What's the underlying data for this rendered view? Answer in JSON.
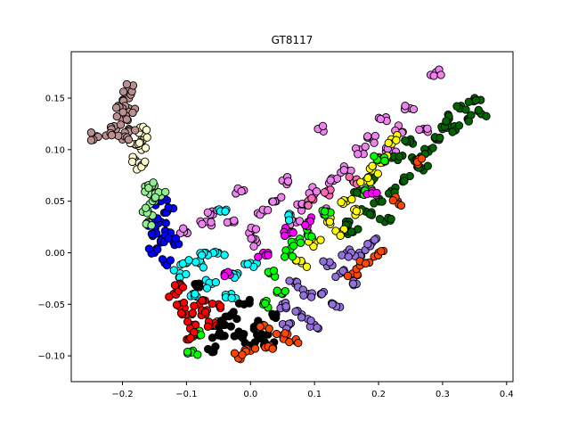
{
  "chart_data": {
    "type": "scatter",
    "title": "GT8117",
    "xlabel": "",
    "ylabel": "",
    "xlim": [
      -0.28,
      0.41
    ],
    "ylim": [
      -0.125,
      0.195
    ],
    "xticks": [
      -0.2,
      -0.1,
      0.0,
      0.1,
      0.2,
      0.3,
      0.4
    ],
    "xtick_labels": [
      "−0.2",
      "−0.1",
      "0.0",
      "0.1",
      "0.2",
      "0.3",
      "0.4"
    ],
    "yticks": [
      -0.1,
      -0.05,
      0.0,
      0.05,
      0.1,
      0.15
    ],
    "ytick_labels": [
      "−0.10",
      "−0.05",
      "0.00",
      "0.05",
      "0.10",
      "0.15"
    ],
    "grid": false,
    "legend": "none",
    "series": [
      {
        "color": "#ee82ee",
        "points": [
          [
            0.02,
            0.04
          ],
          [
            0.05,
            0.07
          ],
          [
            -0.03,
            0.03
          ],
          [
            0.1,
            0.06
          ],
          [
            0.13,
            0.07
          ],
          [
            0.17,
            0.1
          ],
          [
            0.21,
            0.13
          ],
          [
            0.25,
            0.14
          ],
          [
            -0.1,
            0.02
          ],
          [
            -0.07,
            0.03
          ],
          [
            0.0,
            0.02
          ],
          [
            0.07,
            0.03
          ],
          [
            0.15,
            0.08
          ],
          [
            0.19,
            0.11
          ],
          [
            0.23,
            0.12
          ],
          [
            -0.06,
            0.04
          ],
          [
            0.11,
            0.12
          ],
          [
            0.04,
            0.05
          ],
          [
            0.08,
            0.045
          ],
          [
            -0.02,
            0.06
          ],
          [
            0.29,
            0.175
          ],
          [
            0.27,
            0.12
          ],
          [
            0.22,
            0.1
          ],
          [
            0.12,
            0.04
          ],
          [
            0.01,
            0.01
          ]
        ]
      },
      {
        "color": "#ff69b4",
        "points": [
          [
            0.12,
            0.06
          ],
          [
            0.16,
            0.07
          ],
          [
            0.09,
            0.05
          ],
          [
            0.2,
            0.09
          ],
          [
            0.06,
            0.02
          ]
        ]
      },
      {
        "color": "#006400",
        "points": [
          [
            0.18,
            0.04
          ],
          [
            0.22,
            0.06
          ],
          [
            0.26,
            0.09
          ],
          [
            0.3,
            0.12
          ],
          [
            0.33,
            0.14
          ],
          [
            0.35,
            0.15
          ],
          [
            0.28,
            0.1
          ],
          [
            0.24,
            0.07
          ],
          [
            0.2,
            0.05
          ],
          [
            0.16,
            0.02
          ],
          [
            0.31,
            0.13
          ],
          [
            0.27,
            0.08
          ],
          [
            0.23,
            0.09
          ],
          [
            0.19,
            0.07
          ],
          [
            0.25,
            0.11
          ],
          [
            0.21,
            0.03
          ],
          [
            0.29,
            0.11
          ],
          [
            0.32,
            0.12
          ],
          [
            0.34,
            0.13
          ],
          [
            0.15,
            0.03
          ],
          [
            0.36,
            0.135
          ],
          [
            0.17,
            0.06
          ]
        ]
      },
      {
        "color": "#9370db",
        "points": [
          [
            0.05,
            -0.05
          ],
          [
            0.08,
            -0.06
          ],
          [
            0.11,
            -0.04
          ],
          [
            0.14,
            -0.02
          ],
          [
            0.17,
            0.0
          ],
          [
            0.06,
            -0.07
          ],
          [
            0.1,
            -0.07
          ],
          [
            0.13,
            -0.05
          ],
          [
            0.16,
            -0.03
          ],
          [
            0.19,
            0.01
          ],
          [
            0.07,
            -0.03
          ],
          [
            0.12,
            -0.01
          ],
          [
            0.09,
            -0.04
          ],
          [
            0.15,
            0.0
          ]
        ]
      },
      {
        "color": "#ffff00",
        "points": [
          [
            0.12,
            0.03
          ],
          [
            0.15,
            0.05
          ],
          [
            0.18,
            0.07
          ],
          [
            0.21,
            0.09
          ],
          [
            0.1,
            0.01
          ],
          [
            0.14,
            0.02
          ],
          [
            0.17,
            0.04
          ],
          [
            0.22,
            0.11
          ],
          [
            0.19,
            0.08
          ],
          [
            0.08,
            -0.01
          ]
        ]
      },
      {
        "color": "#00ff00",
        "points": [
          [
            0.03,
            -0.02
          ],
          [
            0.06,
            0.0
          ],
          [
            0.09,
            0.02
          ],
          [
            0.12,
            0.04
          ],
          [
            -0.08,
            -0.08
          ],
          [
            -0.05,
            -0.07
          ],
          [
            0.02,
            -0.05
          ],
          [
            0.05,
            -0.04
          ],
          [
            -0.09,
            -0.095
          ],
          [
            0.18,
            0.06
          ],
          [
            0.2,
            0.09
          ],
          [
            0.07,
            0.01
          ]
        ]
      },
      {
        "color": "#00ffff",
        "points": [
          [
            -0.11,
            -0.02
          ],
          [
            -0.08,
            -0.01
          ],
          [
            -0.05,
            0.0
          ],
          [
            -0.02,
            -0.02
          ],
          [
            -0.09,
            -0.04
          ],
          [
            -0.06,
            -0.03
          ],
          [
            -0.03,
            -0.04
          ],
          [
            0.0,
            -0.01
          ],
          [
            -0.07,
            0.0
          ],
          [
            -0.04,
            0.04
          ],
          [
            -0.1,
            -0.01
          ],
          [
            0.06,
            0.035
          ]
        ]
      },
      {
        "color": "#ff0000",
        "points": [
          [
            -0.12,
            -0.04
          ],
          [
            -0.11,
            -0.05
          ],
          [
            -0.1,
            -0.06
          ],
          [
            -0.09,
            -0.07
          ],
          [
            -0.08,
            -0.05
          ],
          [
            -0.07,
            -0.06
          ],
          [
            -0.06,
            -0.07
          ],
          [
            -0.11,
            -0.03
          ],
          [
            -0.09,
            -0.08
          ],
          [
            -0.05,
            -0.05
          ]
        ]
      },
      {
        "color": "#000000",
        "points": [
          [
            -0.04,
            -0.07
          ],
          [
            -0.02,
            -0.08
          ],
          [
            0.0,
            -0.09
          ],
          [
            0.02,
            -0.08
          ],
          [
            -0.03,
            -0.06
          ],
          [
            0.01,
            -0.07
          ],
          [
            -0.01,
            -0.05
          ],
          [
            0.04,
            -0.06
          ],
          [
            -0.06,
            -0.095
          ],
          [
            0.03,
            -0.09
          ],
          [
            -0.08,
            -0.03
          ],
          [
            -0.05,
            -0.08
          ]
        ]
      },
      {
        "color": "#ff4500",
        "points": [
          [
            0.0,
            -0.095
          ],
          [
            0.03,
            -0.09
          ],
          [
            0.05,
            -0.08
          ],
          [
            0.07,
            -0.085
          ],
          [
            -0.02,
            -0.1
          ],
          [
            0.02,
            -0.07
          ],
          [
            0.16,
            -0.02
          ],
          [
            0.2,
            0.0
          ],
          [
            0.23,
            0.05
          ],
          [
            0.26,
            0.09
          ],
          [
            0.18,
            -0.01
          ]
        ]
      },
      {
        "color": "#ff00ff",
        "points": [
          [
            0.06,
            0.02
          ],
          [
            0.09,
            0.03
          ],
          [
            0.19,
            0.06
          ],
          [
            -0.04,
            -0.02
          ],
          [
            0.02,
            0.0
          ]
        ]
      },
      {
        "color": "#0000ff",
        "points": [
          [
            -0.15,
            0.0
          ],
          [
            -0.14,
            0.01
          ],
          [
            -0.13,
            0.02
          ],
          [
            -0.14,
            0.03
          ],
          [
            -0.13,
            0.04
          ],
          [
            -0.15,
            0.02
          ],
          [
            -0.12,
            0.01
          ],
          [
            -0.14,
            0.05
          ],
          [
            -0.13,
            -0.01
          ],
          [
            -0.15,
            0.03
          ]
        ]
      },
      {
        "color": "#90ee90",
        "points": [
          [
            -0.16,
            0.06
          ],
          [
            -0.15,
            0.05
          ],
          [
            -0.16,
            0.04
          ],
          [
            -0.15,
            0.065
          ],
          [
            -0.16,
            0.03
          ],
          [
            -0.14,
            0.055
          ]
        ]
      },
      {
        "color": "#fffacd",
        "points": [
          [
            -0.17,
            0.1
          ],
          [
            -0.17,
            0.11
          ],
          [
            -0.18,
            0.09
          ],
          [
            -0.17,
            0.12
          ],
          [
            -0.18,
            0.105
          ],
          [
            -0.17,
            0.085
          ]
        ]
      },
      {
        "color": "#bc8f8f",
        "points": [
          [
            -0.19,
            0.15
          ],
          [
            -0.19,
            0.14
          ],
          [
            -0.2,
            0.13
          ],
          [
            -0.19,
            0.12
          ],
          [
            -0.2,
            0.11
          ],
          [
            -0.21,
            0.12
          ],
          [
            -0.24,
            0.113
          ],
          [
            -0.22,
            0.115
          ],
          [
            -0.19,
            0.16
          ],
          [
            -0.2,
            0.14
          ]
        ]
      }
    ]
  }
}
